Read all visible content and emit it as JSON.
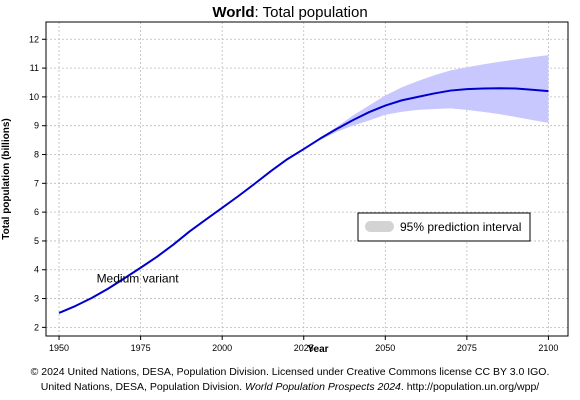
{
  "chart_data": {
    "type": "line",
    "title_bold": "World",
    "title_rest": ": Total population",
    "xlabel": "Year",
    "ylabel": "Total population (billions)",
    "xlim": [
      1946,
      2106
    ],
    "ylim": [
      1.7,
      12.6
    ],
    "x_ticks": [
      1950,
      1975,
      2000,
      2025,
      2050,
      2075,
      2100
    ],
    "y_ticks": [
      2,
      3,
      4,
      5,
      6,
      7,
      8,
      9,
      10,
      11,
      12
    ],
    "grid": true,
    "legend_position": "right-middle",
    "series": [
      {
        "name": "Medium variant",
        "color": "#0000cc",
        "x": [
          1950,
          1955,
          1960,
          1965,
          1970,
          1975,
          1980,
          1985,
          1990,
          1995,
          2000,
          2005,
          2010,
          2015,
          2020,
          2025,
          2030,
          2035,
          2040,
          2045,
          2050,
          2055,
          2060,
          2065,
          2070,
          2075,
          2080,
          2085,
          2090,
          2095,
          2100
        ],
        "y": [
          2.5,
          2.74,
          3.02,
          3.34,
          3.7,
          4.07,
          4.45,
          4.87,
          5.33,
          5.74,
          6.15,
          6.56,
          6.99,
          7.43,
          7.84,
          8.19,
          8.55,
          8.88,
          9.19,
          9.47,
          9.7,
          9.88,
          10.0,
          10.12,
          10.22,
          10.27,
          10.29,
          10.3,
          10.29,
          10.25,
          10.2
        ]
      }
    ],
    "prediction_interval": {
      "name": "95% prediction interval",
      "color": "#c8c8ff",
      "x": [
        2025,
        2030,
        2035,
        2040,
        2045,
        2050,
        2055,
        2060,
        2065,
        2070,
        2075,
        2080,
        2085,
        2090,
        2095,
        2100
      ],
      "lower": [
        8.18,
        8.5,
        8.78,
        9.0,
        9.18,
        9.38,
        9.48,
        9.55,
        9.58,
        9.6,
        9.55,
        9.48,
        9.4,
        9.3,
        9.2,
        9.1
      ],
      "upper": [
        8.2,
        8.58,
        8.95,
        9.35,
        9.7,
        10.05,
        10.33,
        10.55,
        10.75,
        10.92,
        11.03,
        11.13,
        11.22,
        11.3,
        11.38,
        11.45
      ]
    },
    "annotation": "Medium variant",
    "annotation_at": [
      1961.5,
      3.7
    ]
  },
  "footer": {
    "line1": "© 2024 United Nations, DESA, Population Division. Licensed under Creative Commons license CC BY 3.0 IGO.",
    "line2_pre": "United Nations, DESA, Population Division. ",
    "line2_italic": "World Population Prospects 2024",
    "line2_post": ". http://population.un.org/wpp/"
  },
  "colors": {
    "line": "#0000cc",
    "band": "#c8c8ff",
    "grid": "#bbbbbb",
    "legend_swatch": "#d3d3d3"
  }
}
